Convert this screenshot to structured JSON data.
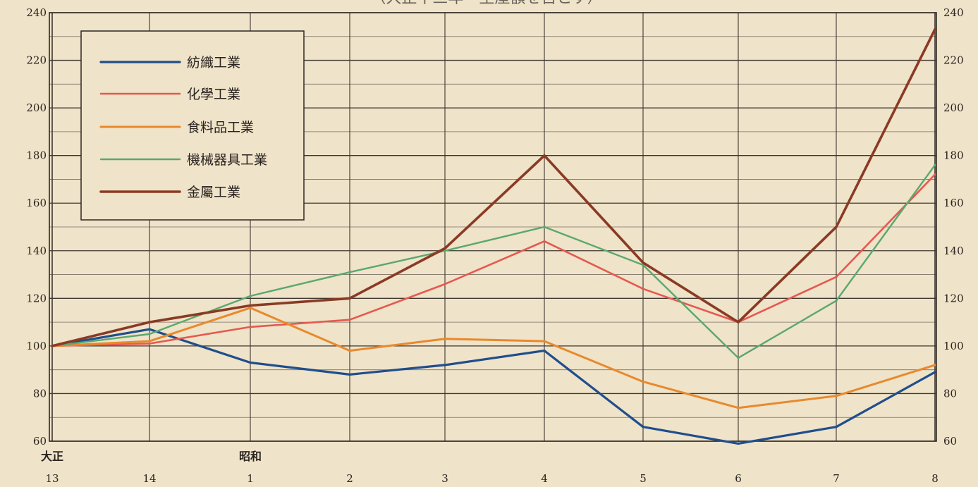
{
  "chart_data": {
    "type": "line",
    "title": "（大正十三年＝生產額を百とす）",
    "x": [
      "13",
      "14",
      "1",
      "2",
      "3",
      "4",
      "5",
      "6",
      "7",
      "8"
    ],
    "era_labels": [
      {
        "label": "大正",
        "at": "13"
      },
      {
        "label": "昭和",
        "at": "1"
      }
    ],
    "ylim": [
      60,
      240
    ],
    "yticks": [
      60,
      80,
      100,
      120,
      140,
      160,
      180,
      200,
      220,
      240
    ],
    "yticks_right": [
      "60",
      "80",
      "100",
      "120",
      "140",
      "160",
      "180",
      "200",
      "220",
      "240"
    ],
    "grid": true,
    "legend_position": "top-left",
    "series": [
      {
        "name": "紡織工業",
        "color": "#1f4e8c",
        "values": [
          100,
          107,
          93,
          88,
          92,
          98,
          66,
          59,
          66,
          89
        ]
      },
      {
        "name": "化學工業",
        "color": "#e5594f",
        "values": [
          100,
          101,
          108,
          111,
          126,
          144,
          124,
          110,
          129,
          172
        ]
      },
      {
        "name": "食料品工業",
        "color": "#e8892d",
        "values": [
          100,
          102,
          116,
          98,
          103,
          102,
          85,
          74,
          79,
          92
        ]
      },
      {
        "name": "機械器具工業",
        "color": "#5aa86e",
        "values": [
          100,
          105,
          121,
          131,
          140,
          150,
          134,
          95,
          119,
          176
        ]
      },
      {
        "name": "金屬工業",
        "color": "#8a3a24",
        "values": [
          100,
          110,
          117,
          120,
          141,
          180,
          135,
          110,
          150,
          233
        ]
      }
    ]
  }
}
